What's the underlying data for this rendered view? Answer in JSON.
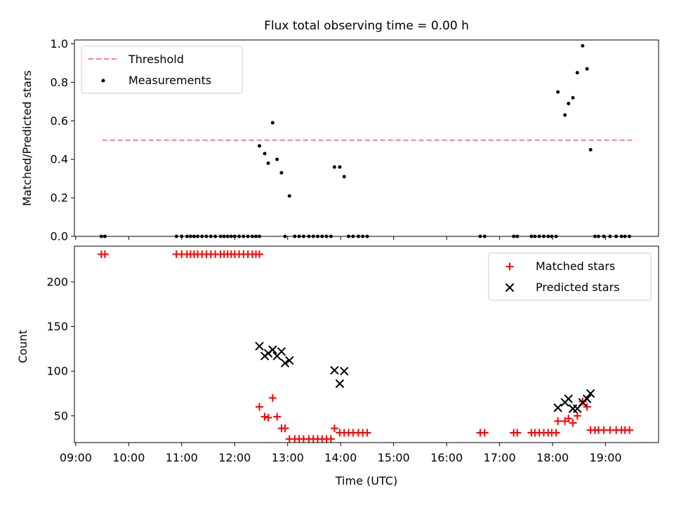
{
  "title": "Flux total observing time = 0.00 h",
  "chart_data": [
    {
      "type": "scatter",
      "panel": "top",
      "ylabel": "Matched/Predicted stars",
      "xlim": [
        "09:00",
        "20:00"
      ],
      "ylim": [
        0,
        1.02
      ],
      "yticks": [
        0,
        0.2,
        0.4,
        0.6,
        0.8,
        1.0
      ],
      "ytick_labels": [
        "0.0",
        "0.2",
        "0.4",
        "0.6",
        "0.8",
        "1.0"
      ],
      "legend": "top-left",
      "threshold": {
        "name": "Threshold",
        "value": 0.5,
        "x_range": [
          "09:30",
          "19:30"
        ],
        "color": "#ff7f7f",
        "style": "dashed"
      },
      "series": [
        {
          "name": "Measurements",
          "color": "#000000",
          "points": [
            [
              "09:29",
              0
            ],
            [
              "09:33",
              0
            ],
            [
              "10:54",
              0
            ],
            [
              "11:00",
              0
            ],
            [
              "11:06",
              0
            ],
            [
              "11:10",
              0
            ],
            [
              "11:14",
              0
            ],
            [
              "11:18",
              0
            ],
            [
              "11:23",
              0
            ],
            [
              "11:28",
              0
            ],
            [
              "11:33",
              0
            ],
            [
              "11:38",
              0
            ],
            [
              "11:44",
              0
            ],
            [
              "11:48",
              0
            ],
            [
              "11:52",
              0
            ],
            [
              "11:56",
              0
            ],
            [
              "12:00",
              0
            ],
            [
              "12:05",
              0
            ],
            [
              "12:10",
              0
            ],
            [
              "12:15",
              0
            ],
            [
              "12:20",
              0
            ],
            [
              "12:24",
              0
            ],
            [
              "12:28",
              0
            ],
            [
              "12:28",
              0.47
            ],
            [
              "12:34",
              0.43
            ],
            [
              "12:38",
              0.38
            ],
            [
              "12:43",
              0.59
            ],
            [
              "12:48",
              0.4
            ],
            [
              "12:53",
              0.33
            ],
            [
              "12:57",
              0.0
            ],
            [
              "13:02",
              0.21
            ],
            [
              "13:08",
              0
            ],
            [
              "13:13",
              0
            ],
            [
              "13:18",
              0
            ],
            [
              "13:24",
              0
            ],
            [
              "13:29",
              0
            ],
            [
              "13:34",
              0
            ],
            [
              "13:39",
              0
            ],
            [
              "13:44",
              0
            ],
            [
              "13:49",
              0
            ],
            [
              "13:53",
              0.36
            ],
            [
              "13:59",
              0.36
            ],
            [
              "14:04",
              0.31
            ],
            [
              "14:09",
              0
            ],
            [
              "14:14",
              0
            ],
            [
              "14:20",
              0
            ],
            [
              "14:25",
              0
            ],
            [
              "14:30",
              0
            ],
            [
              "16:38",
              0
            ],
            [
              "16:43",
              0
            ],
            [
              "17:16",
              0
            ],
            [
              "17:20",
              0
            ],
            [
              "17:36",
              0
            ],
            [
              "17:40",
              0
            ],
            [
              "17:45",
              0
            ],
            [
              "17:50",
              0
            ],
            [
              "17:55",
              0
            ],
            [
              "17:59",
              0
            ],
            [
              "18:04",
              0
            ],
            [
              "18:06",
              0.75
            ],
            [
              "18:14",
              0.63
            ],
            [
              "18:18",
              0.69
            ],
            [
              "18:23",
              0.72
            ],
            [
              "18:28",
              0.85
            ],
            [
              "18:34",
              0.99
            ],
            [
              "18:39",
              0.87
            ],
            [
              "18:43",
              0.45
            ],
            [
              "18:48",
              0
            ],
            [
              "18:52",
              0
            ],
            [
              "18:58",
              0
            ],
            [
              "19:05",
              0
            ],
            [
              "19:12",
              0
            ],
            [
              "19:18",
              0
            ],
            [
              "19:22",
              0
            ],
            [
              "19:27",
              0
            ]
          ]
        }
      ]
    },
    {
      "type": "scatter",
      "panel": "bottom",
      "xlabel": "Time (UTC)",
      "ylabel": "Count",
      "xlim": [
        "09:00",
        "20:00"
      ],
      "xticks": [
        "09:00",
        "10:00",
        "11:00",
        "12:00",
        "13:00",
        "14:00",
        "15:00",
        "16:00",
        "17:00",
        "18:00",
        "19:00"
      ],
      "ylim": [
        20,
        240
      ],
      "yticks": [
        50,
        100,
        150,
        200
      ],
      "ytick_labels": [
        "50",
        "100",
        "150",
        "200"
      ],
      "legend": "top-right",
      "series": [
        {
          "name": "Matched stars",
          "marker": "plus",
          "color": "#ff0000",
          "points": [
            [
              "09:29",
              231
            ],
            [
              "09:33",
              231
            ],
            [
              "10:54",
              231
            ],
            [
              "11:00",
              231
            ],
            [
              "11:06",
              231
            ],
            [
              "11:10",
              231
            ],
            [
              "11:14",
              231
            ],
            [
              "11:18",
              231
            ],
            [
              "11:23",
              231
            ],
            [
              "11:28",
              231
            ],
            [
              "11:33",
              231
            ],
            [
              "11:38",
              231
            ],
            [
              "11:44",
              231
            ],
            [
              "11:48",
              231
            ],
            [
              "11:52",
              231
            ],
            [
              "11:56",
              231
            ],
            [
              "12:00",
              231
            ],
            [
              "12:05",
              231
            ],
            [
              "12:10",
              231
            ],
            [
              "12:15",
              231
            ],
            [
              "12:20",
              231
            ],
            [
              "12:24",
              231
            ],
            [
              "12:28",
              231
            ],
            [
              "12:28",
              60
            ],
            [
              "12:34",
              49
            ],
            [
              "12:38",
              48
            ],
            [
              "12:43",
              70
            ],
            [
              "12:48",
              49
            ],
            [
              "12:53",
              36
            ],
            [
              "12:57",
              36
            ],
            [
              "13:02",
              24
            ],
            [
              "13:08",
              24
            ],
            [
              "13:13",
              24
            ],
            [
              "13:18",
              24
            ],
            [
              "13:24",
              24
            ],
            [
              "13:29",
              24
            ],
            [
              "13:34",
              24
            ],
            [
              "13:39",
              24
            ],
            [
              "13:44",
              24
            ],
            [
              "13:49",
              24
            ],
            [
              "13:53",
              36
            ],
            [
              "13:59",
              31
            ],
            [
              "14:04",
              31
            ],
            [
              "14:09",
              31
            ],
            [
              "14:14",
              31
            ],
            [
              "14:20",
              31
            ],
            [
              "14:25",
              31
            ],
            [
              "14:30",
              31
            ],
            [
              "16:38",
              31
            ],
            [
              "16:43",
              31
            ],
            [
              "17:16",
              31
            ],
            [
              "17:20",
              31
            ],
            [
              "17:36",
              31
            ],
            [
              "17:40",
              31
            ],
            [
              "17:45",
              31
            ],
            [
              "17:50",
              31
            ],
            [
              "17:55",
              31
            ],
            [
              "17:59",
              31
            ],
            [
              "18:04",
              31
            ],
            [
              "18:06",
              44
            ],
            [
              "18:14",
              44
            ],
            [
              "18:18",
              47
            ],
            [
              "18:23",
              42
            ],
            [
              "18:28",
              50
            ],
            [
              "18:34",
              66
            ],
            [
              "18:39",
              60
            ],
            [
              "18:43",
              34
            ],
            [
              "18:48",
              34
            ],
            [
              "18:52",
              34
            ],
            [
              "18:58",
              34
            ],
            [
              "19:05",
              34
            ],
            [
              "19:12",
              34
            ],
            [
              "19:18",
              34
            ],
            [
              "19:22",
              34
            ],
            [
              "19:27",
              34
            ]
          ]
        },
        {
          "name": "Predicted stars",
          "marker": "x",
          "color": "#000000",
          "points": [
            [
              "12:28",
              128
            ],
            [
              "12:34",
              117
            ],
            [
              "12:38",
              120
            ],
            [
              "12:43",
              124
            ],
            [
              "12:48",
              117
            ],
            [
              "12:53",
              122
            ],
            [
              "12:57",
              109
            ],
            [
              "13:02",
              112
            ],
            [
              "13:53",
              101
            ],
            [
              "13:59",
              86
            ],
            [
              "14:04",
              100
            ],
            [
              "18:06",
              59
            ],
            [
              "18:14",
              65
            ],
            [
              "18:18",
              69
            ],
            [
              "18:23",
              58
            ],
            [
              "18:28",
              58
            ],
            [
              "18:34",
              65
            ],
            [
              "18:39",
              69
            ],
            [
              "18:43",
              75
            ]
          ]
        }
      ]
    }
  ]
}
